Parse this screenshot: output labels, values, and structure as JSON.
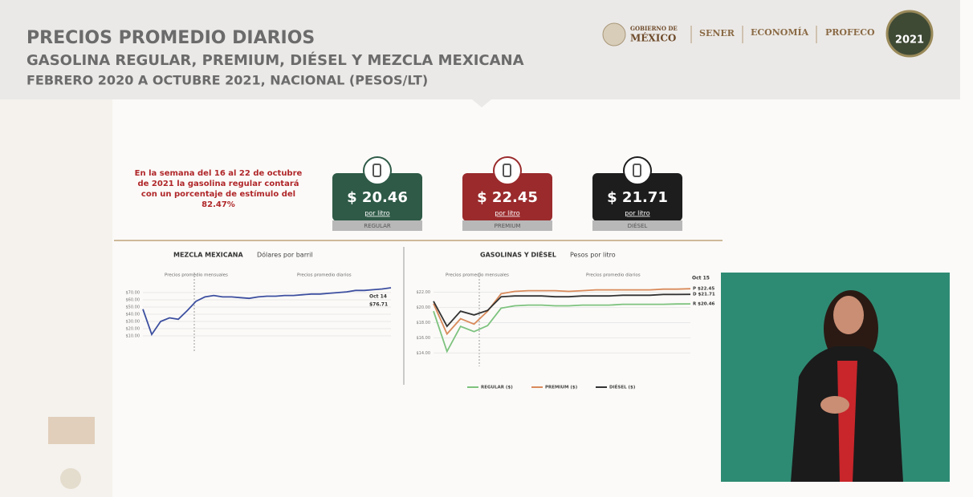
{
  "header": {
    "title": "PRECIOS PROMEDIO DIARIOS",
    "subtitle": "GASOLINA REGULAR, PREMIUM, DIÉSEL Y MEZCLA MEXICANA",
    "period": "FEBRERO 2020 A OCTUBRE 2021, NACIONAL (PESOS/LT)",
    "logos": [
      "GOBIERNO DE",
      "MÉXICO",
      "SENER",
      "ECONOMÍA",
      "PROFECO",
      "2021"
    ]
  },
  "note": [
    "En la semana del 16 al 22 de octubre",
    "de 2021 la gasolina regular contará",
    "con un porcentaje de estímulo del",
    "82.47%"
  ],
  "cards": [
    {
      "price": "$ 20.46",
      "unit": "por litro",
      "label": "REGULAR",
      "color": "#2e5a47"
    },
    {
      "price": "$ 22.45",
      "unit": "por litro",
      "label": "PREMIUM",
      "color": "#9a2a2c"
    },
    {
      "price": "$ 21.71",
      "unit": "por litro",
      "label": "DIÉSEL",
      "color": "#1d1d1d"
    }
  ],
  "charts": [
    {
      "type": "line",
      "title": "MEZCLA MEXICANA",
      "subtitle": "Dólares por barril",
      "labels": [
        "Precios promedio mensuales",
        "Precios promedio diarios"
      ],
      "annotation": [
        "Oct 14",
        "$76.71"
      ],
      "ylim": [
        0,
        80
      ],
      "yticks": [
        {
          "value": 10,
          "label": "$10.00"
        },
        {
          "value": 20,
          "label": "$20.00"
        },
        {
          "value": 30,
          "label": "$30.00"
        },
        {
          "value": 40,
          "label": "$40.00"
        },
        {
          "value": 50,
          "label": "$50.00"
        },
        {
          "value": 60,
          "label": "$60.00"
        },
        {
          "value": 70,
          "label": "$70.00"
        }
      ],
      "series": [
        {
          "color": "#3d4fa0",
          "values": [
            47,
            12,
            30,
            35,
            33,
            45,
            58,
            64,
            66,
            64,
            64,
            63,
            62,
            64,
            65,
            65,
            66,
            66,
            67,
            68,
            68,
            69,
            70,
            71,
            73,
            73,
            74,
            75,
            76.71
          ]
        }
      ]
    },
    {
      "type": "line",
      "title": "GASOLINAS Y DIÉSEL",
      "subtitle": "Pesos por litro",
      "labels": [
        "Precios promedio mensuales",
        "Precios promedio diarios"
      ],
      "annotation": [
        "Oct 15"
      ],
      "ylim": [
        13.5,
        23
      ],
      "yticks": [
        {
          "value": 14,
          "label": "$14.00"
        },
        {
          "value": 16,
          "label": "$16.00"
        },
        {
          "value": 18,
          "label": "$18.00"
        },
        {
          "value": 20,
          "label": "$20.00"
        },
        {
          "value": 22,
          "label": "$22.00"
        }
      ],
      "series": [
        {
          "name": "REGULAR ($)",
          "end_label": "R $20.46",
          "color": "#7dc27e",
          "values": [
            19.5,
            14.2,
            17.5,
            16.8,
            17.6,
            19.9,
            20.2,
            20.3,
            20.3,
            20.2,
            20.2,
            20.3,
            20.3,
            20.3,
            20.4,
            20.4,
            20.4,
            20.4,
            20.45,
            20.46
          ]
        },
        {
          "name": "PREMIUM ($)",
          "end_label": "P $22.45",
          "color": "#d98a5a",
          "values": [
            20.5,
            16.5,
            18.5,
            17.8,
            19.5,
            21.8,
            22.1,
            22.2,
            22.2,
            22.2,
            22.1,
            22.2,
            22.3,
            22.3,
            22.3,
            22.3,
            22.3,
            22.4,
            22.4,
            22.45
          ]
        },
        {
          "name": "DIÉSEL ($)",
          "end_label": "D $21.71",
          "color": "#333333",
          "values": [
            20.8,
            17.5,
            19.5,
            19.0,
            19.6,
            21.4,
            21.5,
            21.5,
            21.5,
            21.4,
            21.4,
            21.5,
            21.5,
            21.5,
            21.6,
            21.6,
            21.6,
            21.7,
            21.7,
            21.71
          ]
        }
      ]
    }
  ]
}
